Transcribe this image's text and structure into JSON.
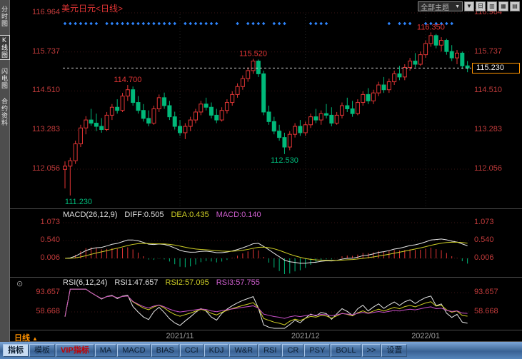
{
  "top_bar": {
    "title": "美元日元<日线>",
    "theme_dropdown_label": "全部主题",
    "buttons": [
      {
        "name": "dropdown-arrow-button",
        "glyph": "▼"
      },
      {
        "name": "period-day-button",
        "glyph": "日"
      },
      {
        "name": "chart-style-button-1",
        "glyph": "▥"
      },
      {
        "name": "chart-style-button-2",
        "glyph": "▦"
      },
      {
        "name": "chart-style-button-3",
        "glyph": "▤"
      }
    ]
  },
  "sidebar": {
    "items": [
      {
        "label": "分时图",
        "name": "sidebar-item-time-chart",
        "active": false
      },
      {
        "label": "K线图",
        "name": "sidebar-item-kline-chart",
        "active": true
      },
      {
        "label": "闪电图",
        "name": "sidebar-item-flash-chart",
        "active": false
      },
      {
        "label": "合约资料",
        "name": "sidebar-item-contract-info",
        "active": false
      }
    ]
  },
  "main_chart": {
    "price_axis_labels": [
      "116.964",
      "115.737",
      "114.510",
      "113.283",
      "112.056"
    ],
    "current_price": "115.230"
  },
  "macd_panel": {
    "title": "MACD(26,12,9)",
    "diff_label": "DIFF:0.505",
    "dea_label": "DEA:0.435",
    "macd_label": "MACD:0.140",
    "axis_labels": [
      "1.073",
      "0.540",
      "0.006"
    ]
  },
  "rsi_panel": {
    "title": "RSI(6,12,24)",
    "rsi1_label": "RSI1:47.657",
    "rsi2_label": "RSI2:57.095",
    "rsi3_label": "RSI3:57.755",
    "axis_labels": [
      "93.657",
      "58.668"
    ]
  },
  "date_axis": {
    "period_label": "日线",
    "arrow": "▲",
    "ticks": [
      {
        "label": "2021/11",
        "idx": 22
      },
      {
        "label": "2021/12",
        "idx": 46
      },
      {
        "label": "2022/01",
        "idx": 69
      }
    ]
  },
  "toolbar": {
    "items": [
      {
        "label": "指标",
        "key": "indicators",
        "active": true
      },
      {
        "label": "模板",
        "key": "templates"
      },
      {
        "label": "VIP指标",
        "key": "vip-indicators",
        "vip": true
      },
      {
        "label": "MA",
        "key": "ma"
      },
      {
        "label": "MACD",
        "key": "macd"
      },
      {
        "label": "BIAS",
        "key": "bias"
      },
      {
        "label": "CCI",
        "key": "cci"
      },
      {
        "label": "KDJ",
        "key": "kdj"
      },
      {
        "label": "W&R",
        "key": "wr"
      },
      {
        "label": "RSI",
        "key": "rsi"
      },
      {
        "label": "CR",
        "key": "cr"
      },
      {
        "label": "PSY",
        "key": "psy"
      },
      {
        "label": "BOLL",
        "key": "boll"
      },
      {
        "label": ">>",
        "key": "more"
      },
      {
        "label": "设置",
        "key": "settings"
      }
    ]
  },
  "colors": {
    "up": "#e23535",
    "down": "#00b97a",
    "axis": "#c23b3b",
    "diff_line": "#e8e8e8",
    "dea_line": "#cfcf26",
    "rsi1": "#e8e8e8",
    "rsi2": "#cfcf26",
    "rsi3": "#c84fc8",
    "marker": "#2f86ff",
    "current_box_border": "#ff9500"
  },
  "chart_data": {
    "type": "candlestick",
    "symbol": "美元日元",
    "period": "日线",
    "last_price": 115.23,
    "price_ticks": [
      116.964,
      115.737,
      114.51,
      113.283,
      112.056
    ],
    "ohlc": [
      [
        112.05,
        112.3,
        111.45,
        112.15
      ],
      [
        112.15,
        112.42,
        111.23,
        112.32
      ],
      [
        112.32,
        112.95,
        112.22,
        112.85
      ],
      [
        112.85,
        113.45,
        112.75,
        113.35
      ],
      [
        113.35,
        113.72,
        113.15,
        113.6
      ],
      [
        113.6,
        113.95,
        113.42,
        113.5
      ],
      [
        113.5,
        113.8,
        113.25,
        113.4
      ],
      [
        113.4,
        113.66,
        113.2,
        113.3
      ],
      [
        113.3,
        113.85,
        113.25,
        113.75
      ],
      [
        113.75,
        114.1,
        113.6,
        114.0
      ],
      [
        114.0,
        114.25,
        113.8,
        113.9
      ],
      [
        113.9,
        114.45,
        113.85,
        114.35
      ],
      [
        114.35,
        114.7,
        114.2,
        114.55
      ],
      [
        114.55,
        114.65,
        114.05,
        114.15
      ],
      [
        114.15,
        114.35,
        113.8,
        113.9
      ],
      [
        113.9,
        114.1,
        113.55,
        113.65
      ],
      [
        113.65,
        113.9,
        113.4,
        113.5
      ],
      [
        113.5,
        114.05,
        113.45,
        113.95
      ],
      [
        113.95,
        114.4,
        113.85,
        114.3
      ],
      [
        114.3,
        114.46,
        113.95,
        114.05
      ],
      [
        114.05,
        114.2,
        113.6,
        113.7
      ],
      [
        113.7,
        113.86,
        113.3,
        113.4
      ],
      [
        113.4,
        113.6,
        113.1,
        113.2
      ],
      [
        113.2,
        113.5,
        113.0,
        113.4
      ],
      [
        113.4,
        113.7,
        113.25,
        113.6
      ],
      [
        113.6,
        113.95,
        113.5,
        113.85
      ],
      [
        113.85,
        114.2,
        113.75,
        114.1
      ],
      [
        114.1,
        114.3,
        113.9,
        114.0
      ],
      [
        114.0,
        114.15,
        113.65,
        113.75
      ],
      [
        113.75,
        113.95,
        113.5,
        113.6
      ],
      [
        113.6,
        114.0,
        113.55,
        113.9
      ],
      [
        113.9,
        114.25,
        113.8,
        114.15
      ],
      [
        114.15,
        114.5,
        114.05,
        114.4
      ],
      [
        114.4,
        114.75,
        114.3,
        114.65
      ],
      [
        114.65,
        115.0,
        114.55,
        114.9
      ],
      [
        114.9,
        115.25,
        114.8,
        115.15
      ],
      [
        115.15,
        115.52,
        115.05,
        115.45
      ],
      [
        115.45,
        115.5,
        114.95,
        115.05
      ],
      [
        115.05,
        115.15,
        113.75,
        113.85
      ],
      [
        113.85,
        114.05,
        113.45,
        113.55
      ],
      [
        113.55,
        113.7,
        113.15,
        113.25
      ],
      [
        113.25,
        113.45,
        112.95,
        113.05
      ],
      [
        113.05,
        113.2,
        112.53,
        112.75
      ],
      [
        112.75,
        113.25,
        112.65,
        113.15
      ],
      [
        113.15,
        113.5,
        113.05,
        113.4
      ],
      [
        113.4,
        113.6,
        113.1,
        113.2
      ],
      [
        113.2,
        113.55,
        113.1,
        113.45
      ],
      [
        113.45,
        113.8,
        113.35,
        113.7
      ],
      [
        113.7,
        113.95,
        113.5,
        113.6
      ],
      [
        113.6,
        113.9,
        113.45,
        113.8
      ],
      [
        113.8,
        114.1,
        113.65,
        113.75
      ],
      [
        113.75,
        114.0,
        113.4,
        113.5
      ],
      [
        113.5,
        113.85,
        113.45,
        113.75
      ],
      [
        113.75,
        114.15,
        113.65,
        114.05
      ],
      [
        114.05,
        114.3,
        113.85,
        113.95
      ],
      [
        113.95,
        114.2,
        113.7,
        113.8
      ],
      [
        113.8,
        114.25,
        113.75,
        114.15
      ],
      [
        114.15,
        114.5,
        114.05,
        114.4
      ],
      [
        114.4,
        114.6,
        114.1,
        114.2
      ],
      [
        114.2,
        114.55,
        114.1,
        114.45
      ],
      [
        114.45,
        114.8,
        114.35,
        114.7
      ],
      [
        114.7,
        114.95,
        114.45,
        114.55
      ],
      [
        114.55,
        114.9,
        114.45,
        114.8
      ],
      [
        114.8,
        115.15,
        114.7,
        115.05
      ],
      [
        115.05,
        115.3,
        114.85,
        114.95
      ],
      [
        114.95,
        115.35,
        114.85,
        115.25
      ],
      [
        115.25,
        115.55,
        115.15,
        115.45
      ],
      [
        115.45,
        115.7,
        115.25,
        115.35
      ],
      [
        115.35,
        115.75,
        115.3,
        115.65
      ],
      [
        115.65,
        116.1,
        115.55,
        116.0
      ],
      [
        116.0,
        116.35,
        115.9,
        116.25
      ],
      [
        116.25,
        116.3,
        115.85,
        115.95
      ],
      [
        115.95,
        116.2,
        115.75,
        116.1
      ],
      [
        116.1,
        116.15,
        115.65,
        115.75
      ],
      [
        115.75,
        115.95,
        115.45,
        115.55
      ],
      [
        115.55,
        115.8,
        115.35,
        115.7
      ],
      [
        115.7,
        115.75,
        115.2,
        115.3
      ],
      [
        115.3,
        115.45,
        115.1,
        115.23
      ]
    ],
    "annotations": [
      {
        "text": "111.230",
        "idx": 1,
        "price": 111.23,
        "dir": "below",
        "color": "down"
      },
      {
        "text": "114.700",
        "idx": 12,
        "price": 114.7,
        "dir": "above",
        "color": "up"
      },
      {
        "text": "115.520",
        "idx": 36,
        "price": 115.52,
        "dir": "above",
        "color": "up"
      },
      {
        "text": "112.530",
        "idx": 42,
        "price": 112.53,
        "dir": "below",
        "color": "down"
      },
      {
        "text": "116.350",
        "idx": 70,
        "price": 116.35,
        "dir": "above",
        "color": "up"
      }
    ],
    "markers_idx": [
      0,
      1,
      2,
      3,
      4,
      5,
      6,
      8,
      9,
      10,
      11,
      12,
      13,
      14,
      15,
      16,
      17,
      18,
      19,
      20,
      21,
      23,
      24,
      25,
      26,
      27,
      28,
      29,
      33,
      35,
      36,
      37,
      38,
      40,
      41,
      42,
      47,
      48,
      49,
      50,
      62,
      64,
      65,
      66,
      69,
      70,
      71,
      72,
      73,
      74
    ],
    "indicators": {
      "macd": {
        "diff": 0.505,
        "dea": 0.435,
        "macd": 0.14,
        "axis": [
          1.073,
          0.54,
          0.006
        ]
      },
      "rsi": {
        "rsi1": 47.657,
        "rsi2": 57.095,
        "rsi3": 57.755,
        "axis": [
          93.657,
          58.668
        ]
      }
    }
  }
}
